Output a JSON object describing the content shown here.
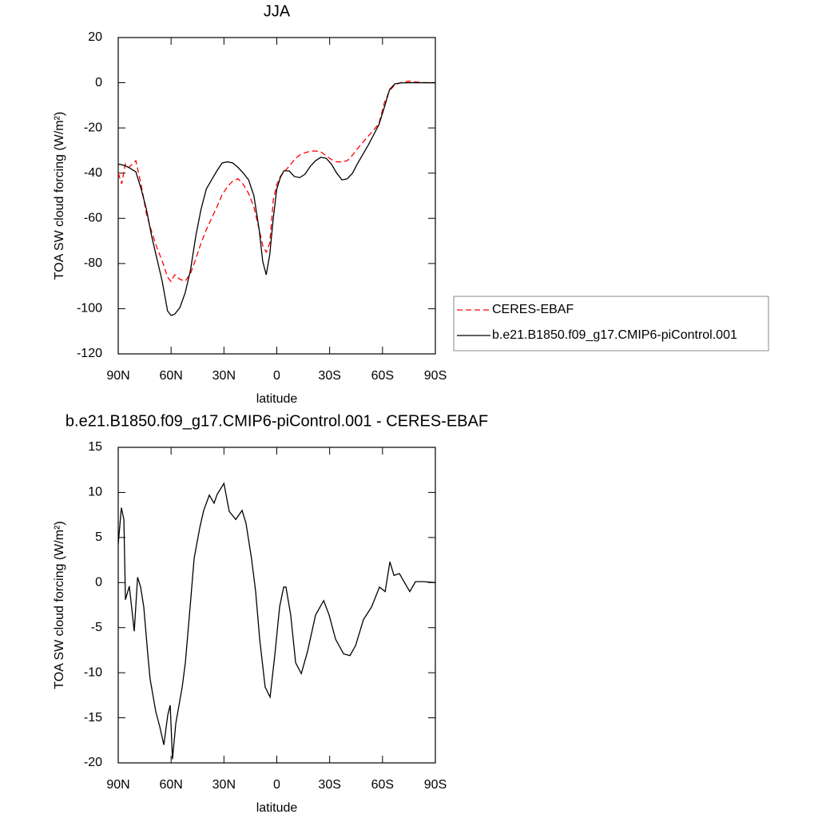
{
  "chart_data": [
    {
      "type": "line",
      "title": "JJA",
      "xlabel": "latitude",
      "ylabel": "TOA SW cloud forcing (W/m²)",
      "x": [
        90,
        88,
        86,
        84,
        82,
        80,
        77,
        74,
        71,
        68,
        65,
        62,
        60,
        58,
        55,
        52,
        49,
        46,
        43,
        40,
        37,
        34,
        31,
        28,
        25,
        22,
        19,
        16,
        13,
        10,
        8,
        6,
        4,
        2,
        0,
        -2,
        -4,
        -7,
        -10,
        -13,
        -16,
        -19,
        -22,
        -25,
        -28,
        -31,
        -34,
        -37,
        -40,
        -43,
        -46,
        -49,
        -52,
        -55,
        -58,
        -61,
        -64,
        -67,
        -70,
        -75,
        -80,
        -85,
        -90
      ],
      "series": [
        {
          "name": "CERES-EBAF",
          "color": "#ff0000",
          "dashed": true,
          "values": [
            -40,
            -44.7,
            -36,
            -37.5,
            -36,
            -34.5,
            -45,
            -58,
            -66,
            -73,
            -79,
            -86,
            -88,
            -85,
            -87,
            -87.8,
            -84.5,
            -78,
            -71,
            -65,
            -60,
            -55,
            -49.5,
            -46,
            -43.5,
            -42.5,
            -45,
            -49,
            -55,
            -65,
            -72,
            -75,
            -71,
            -52,
            -45,
            -41.5,
            -39.5,
            -37,
            -34,
            -32,
            -31,
            -30.3,
            -30.2,
            -30.6,
            -32.3,
            -34,
            -35,
            -35,
            -34.5,
            -32,
            -29,
            -26.3,
            -23.5,
            -21,
            -18,
            -9,
            -3.5,
            -1,
            0,
            0.7,
            0.3,
            0,
            0
          ]
        },
        {
          "name": "b.e21.B1850.f09_g17.CMIP6-piControl.001",
          "color": "#000000",
          "dashed": false,
          "values": [
            -36,
            -36.3,
            -36.8,
            -37.5,
            -38.5,
            -39.4,
            -47,
            -56,
            -68,
            -78,
            -88,
            -101,
            -103,
            -102.5,
            -99.5,
            -93,
            -83,
            -68,
            -56,
            -47,
            -43,
            -39,
            -35.5,
            -35,
            -35.5,
            -37.5,
            -40,
            -43,
            -50,
            -65,
            -79,
            -85,
            -76,
            -60,
            -47,
            -42,
            -39,
            -39,
            -41.5,
            -42,
            -40.5,
            -37,
            -34.5,
            -33,
            -33.4,
            -36,
            -40,
            -43,
            -42.5,
            -40,
            -35.5,
            -31.5,
            -27.5,
            -23,
            -18.5,
            -11,
            -3,
            -0.5,
            -0.1,
            0,
            0,
            0,
            0
          ]
        }
      ],
      "xlim": [
        90,
        -90
      ],
      "xticks": [
        {
          "value": 90,
          "label": "90N"
        },
        {
          "value": 60,
          "label": "60N"
        },
        {
          "value": 30,
          "label": "30N"
        },
        0,
        {
          "value": -30,
          "label": "30S"
        },
        {
          "value": -60,
          "label": "60S"
        },
        {
          "value": -90,
          "label": "90S"
        }
      ],
      "ylim": [
        -120,
        20
      ],
      "yticks": [
        -120,
        -100,
        -80,
        -60,
        -40,
        -20,
        0,
        20
      ],
      "legend": "right"
    },
    {
      "type": "line",
      "title": "b.e21.B1850.f09_g17.CMIP6-piControl.001 - CERES-EBAF",
      "xlabel": "latitude",
      "ylabel": "TOA SW cloud forcing (W/m²)",
      "x": [
        90,
        88.2,
        86.8,
        85.9,
        83.7,
        80.9,
        79,
        77.3,
        75.5,
        73.2,
        71.9,
        68.7,
        66.4,
        64.1,
        61.9,
        60.5,
        59.2,
        57.3,
        53.7,
        51.9,
        49.2,
        46.9,
        43.7,
        41.5,
        38.3,
        35.6,
        33.8,
        30,
        27,
        23.3,
        19.7,
        17.5,
        14.3,
        12,
        9.7,
        6.6,
        3.8,
        1.1,
        -1.6,
        -3.9,
        -5.2,
        -7.9,
        -10.7,
        -13.9,
        -17.5,
        -22,
        -26.6,
        -29.7,
        -33.4,
        -37.9,
        -41.5,
        -44.7,
        -49.2,
        -53.8,
        -58.3,
        -61.5,
        -64.2,
        -66.5,
        -69.6,
        -72.8,
        -75.5,
        -78.7,
        -83.2,
        -90
      ],
      "series": [
        {
          "name": null,
          "color": "#000000",
          "dashed": false,
          "values": [
            4.3,
            8.3,
            7,
            -1.9,
            -0.4,
            -5.4,
            0.6,
            -0.5,
            -2.7,
            -8,
            -10.7,
            -14.3,
            -16,
            -18,
            -14.7,
            -13.6,
            -19.6,
            -15.6,
            -11.6,
            -8.9,
            -2.7,
            2.7,
            6.1,
            8,
            9.7,
            8.8,
            9.8,
            11,
            7.9,
            7,
            8,
            6.6,
            2.6,
            -1,
            -6.3,
            -11.6,
            -12.7,
            -8,
            -2.7,
            -0.5,
            -0.5,
            -3.6,
            -8.9,
            -10.1,
            -7.6,
            -3.6,
            -2,
            -3.6,
            -6.3,
            -7.9,
            -8.1,
            -7,
            -4.1,
            -2.7,
            -0.5,
            -1,
            2.3,
            0.8,
            1,
            -0.1,
            -1,
            0.1,
            0.1,
            0
          ]
        }
      ],
      "xlim": [
        90,
        -90
      ],
      "xticks": [
        {
          "value": 90,
          "label": "90N"
        },
        {
          "value": 60,
          "label": "60N"
        },
        {
          "value": 30,
          "label": "30N"
        },
        0,
        {
          "value": -30,
          "label": "30S"
        },
        {
          "value": -60,
          "label": "60S"
        },
        {
          "value": -90,
          "label": "90S"
        }
      ],
      "ylim": [
        -20,
        15
      ],
      "yticks": [
        -20,
        -15,
        -10,
        -5,
        0,
        5,
        10,
        15
      ]
    }
  ]
}
